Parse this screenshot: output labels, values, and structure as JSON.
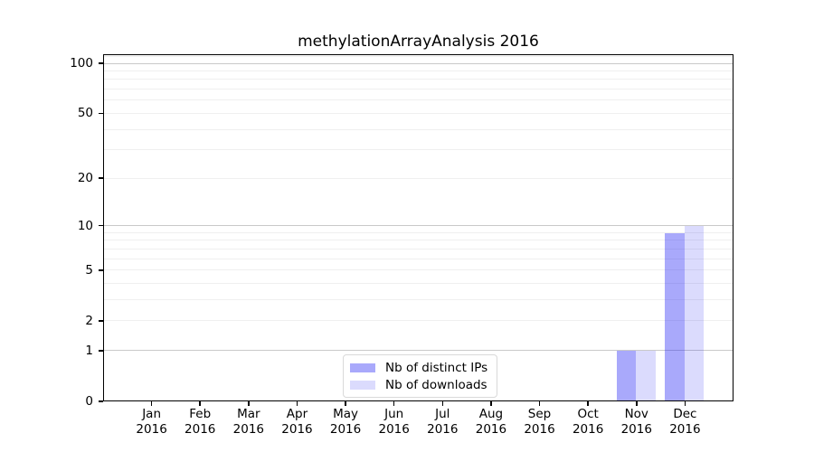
{
  "chart_data": {
    "type": "bar",
    "title": "methylationArrayAnalysis 2016",
    "categories": [
      "Jan 2016",
      "Feb 2016",
      "Mar 2016",
      "Apr 2016",
      "May 2016",
      "Jun 2016",
      "Jul 2016",
      "Aug 2016",
      "Sep 2016",
      "Oct 2016",
      "Nov 2016",
      "Dec 2016"
    ],
    "series": [
      {
        "name": "Nb of distinct IPs",
        "color": "#2828f5",
        "fill_opacity": 0.4,
        "color_on_white": "#a9a9f5",
        "values": [
          0,
          0,
          0,
          0,
          0,
          0,
          0,
          0,
          0,
          0,
          1,
          9
        ]
      },
      {
        "name": "Nb of downloads",
        "color": "#2828f5",
        "fill_opacity": 0.17,
        "color_on_white": "#dadaf8",
        "values": [
          0,
          0,
          0,
          0,
          0,
          0,
          0,
          0,
          0,
          0,
          1,
          10
        ]
      }
    ],
    "xlabel": "",
    "ylabel": "",
    "yscale": "log10(value+1)",
    "ylim": [
      0,
      113
    ],
    "yticks": [
      0,
      1,
      2,
      5,
      10,
      20,
      50,
      100
    ],
    "gridlines": {
      "major": [
        1,
        10,
        100
      ],
      "minor": [
        2,
        3,
        4,
        5,
        6,
        7,
        8,
        9,
        20,
        30,
        40,
        50,
        60,
        70,
        80,
        90,
        110
      ]
    },
    "legend": {
      "position": "lower center",
      "labels": [
        "Nb of distinct IPs",
        "Nb of downloads"
      ]
    },
    "bar_width_fraction": 0.4,
    "grid": true
  },
  "colors": {
    "grid_major": "#c9c9c9",
    "grid_minor": "#efefef",
    "axis": "#000000",
    "text": "#000000",
    "background": "#ffffff",
    "legend_border": "#d9d9d9"
  }
}
